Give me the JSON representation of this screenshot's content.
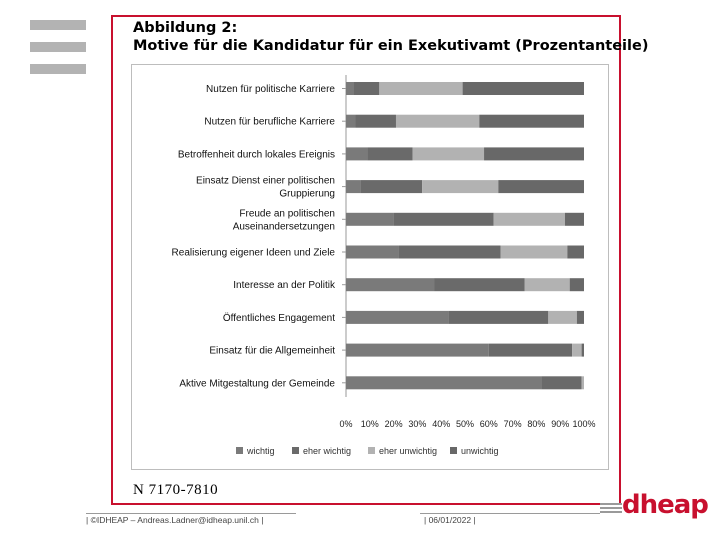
{
  "figure": {
    "title_line1": "Abbildung 2:",
    "title_line2": "Motive für die Kandidatur für ein Exekutivamt (Prozentanteile)",
    "sample_note": "N  7170-7810"
  },
  "footer": {
    "left": "| ©IDHEAP – Andreas.Ladner@idheap.unil.ch |",
    "center": "| 06/01/2022 |",
    "logo": "dheap"
  },
  "colors": {
    "wichtig": "#7a7a7a",
    "eher_wichtig": "#6a6a6a",
    "eher_unwichtig": "#b2b2b2",
    "unwichtig": "#686868",
    "brand": "#c8102e"
  },
  "chart_data": {
    "type": "bar",
    "orientation": "horizontal-stacked-100",
    "categories": [
      "Nutzen für politische Karriere",
      "Nutzen für berufliche Karriere",
      "Betroffenheit durch lokales Ereignis",
      "Einsatz Dienst einer politischen|Gruppierung",
      "Freude an politischen|Auseinandersetzungen",
      "Realisierung eigener Ideen und Ziele",
      "Interesse an der Politik",
      "Öffentliches Engagement",
      "Einsatz für die Allgemeinheit",
      "Aktive Mitgestaltung der Gemeinde"
    ],
    "series": [
      {
        "name": "wichtig",
        "values": [
          3,
          4,
          9,
          6,
          20,
          22,
          37,
          43,
          60,
          82
        ]
      },
      {
        "name": "eher wichtig",
        "values": [
          11,
          17,
          19,
          26,
          42,
          43,
          38,
          42,
          35,
          17
        ]
      },
      {
        "name": "eher unwichtig",
        "values": [
          35,
          35,
          30,
          32,
          30,
          28,
          19,
          12,
          4,
          1
        ]
      },
      {
        "name": "unwichtig",
        "values": [
          51,
          44,
          42,
          36,
          8,
          7,
          6,
          3,
          1,
          0
        ]
      }
    ],
    "xticks": [
      "0%",
      "10%",
      "20%",
      "30%",
      "40%",
      "50%",
      "60%",
      "70%",
      "80%",
      "90%",
      "100%"
    ],
    "xlim": [
      0,
      100
    ],
    "legend": [
      "wichtig",
      "eher wichtig",
      "eher unwichtig",
      "unwichtig"
    ],
    "legend_position": "bottom"
  }
}
